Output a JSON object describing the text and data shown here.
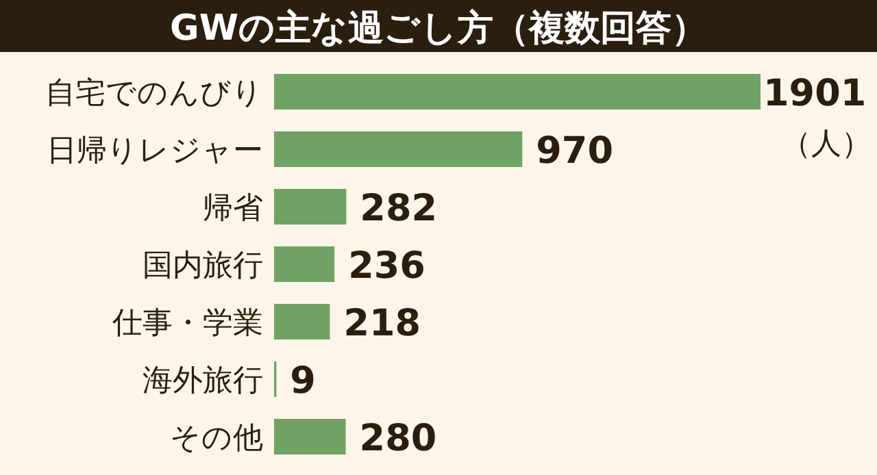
{
  "chart_data": {
    "type": "bar",
    "orientation": "horizontal",
    "title": "GWの主な過ごし方（複数回答）",
    "categories": [
      "自宅でのんびり",
      "日帰りレジャー",
      "帰省",
      "国内旅行",
      "仕事・学業",
      "海外旅行",
      "その他"
    ],
    "values": [
      1901,
      970,
      282,
      236,
      218,
      9,
      280
    ],
    "color": "#6fa263",
    "data_labels": true,
    "annotations": [
      "（人）"
    ]
  }
}
